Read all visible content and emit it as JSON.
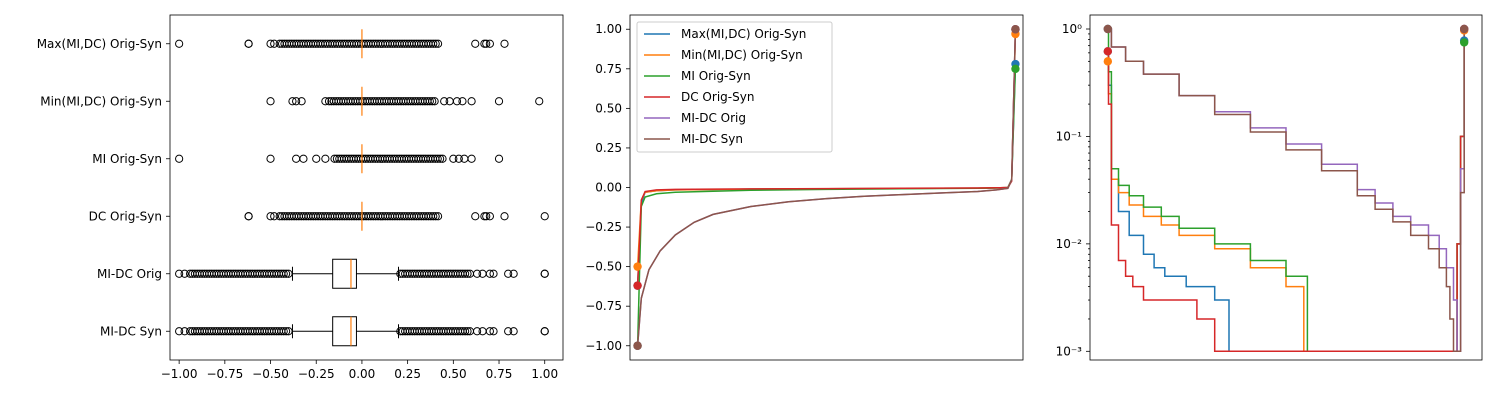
{
  "palette": [
    "#1f77b4",
    "#ff7f0e",
    "#2ca02c",
    "#d62728",
    "#9467bd",
    "#8c564b"
  ],
  "chart_data": [
    {
      "type": "box",
      "orientation": "horizontal",
      "categories": [
        "Max(MI,DC) Orig-Syn",
        "Min(MI,DC) Orig-Syn",
        "MI Orig-Syn",
        "DC Orig-Syn",
        "MI-DC Orig",
        "MI-DC Syn"
      ],
      "xlim": [
        -1.05,
        1.1
      ],
      "xticks": [
        -1.0,
        -0.75,
        -0.5,
        -0.25,
        0.0,
        0.25,
        0.5,
        0.75,
        1.0
      ],
      "xtick_labels": [
        "−1.00",
        "−0.75",
        "−0.50",
        "−0.25",
        "0.00",
        "0.25",
        "0.50",
        "0.75",
        "1.00"
      ],
      "boxes": [
        {
          "label": "Max(MI,DC) Orig-Syn",
          "q1": 0.0,
          "median": 0.0,
          "q3": 0.0,
          "whisker_low": 0.0,
          "whisker_high": 0.0,
          "outliers_dense": [
            -0.45,
            0.42
          ],
          "outliers_sparse": [
            -1.0,
            -0.62,
            -0.62,
            -0.5,
            -0.48,
            0.62,
            0.67,
            0.68,
            0.7,
            0.78
          ]
        },
        {
          "label": "Min(MI,DC) Orig-Syn",
          "q1": 0.0,
          "median": 0.0,
          "q3": 0.0,
          "whisker_low": 0.0,
          "whisker_high": 0.0,
          "outliers_dense": [
            -0.18,
            0.4
          ],
          "outliers_sparse": [
            -0.5,
            -0.38,
            -0.36,
            -0.33,
            -0.2,
            0.45,
            0.48,
            0.52,
            0.55,
            0.6,
            0.75,
            0.97
          ]
        },
        {
          "label": "MI Orig-Syn",
          "q1": 0.0,
          "median": 0.0,
          "q3": 0.0,
          "whisker_low": 0.0,
          "whisker_high": 0.0,
          "outliers_dense": [
            -0.15,
            0.45
          ],
          "outliers_sparse": [
            -1.0,
            -0.5,
            -0.36,
            -0.32,
            -0.25,
            -0.2,
            0.5,
            0.53,
            0.56,
            0.6,
            0.75
          ]
        },
        {
          "label": "DC Orig-Syn",
          "q1": 0.0,
          "median": 0.0,
          "q3": 0.0,
          "whisker_low": 0.0,
          "whisker_high": 0.0,
          "outliers_dense": [
            -0.45,
            0.42
          ],
          "outliers_sparse": [
            -0.62,
            -0.62,
            -0.5,
            -0.48,
            0.62,
            0.67,
            0.68,
            0.7,
            0.78,
            1.0
          ]
        },
        {
          "label": "MI-DC Orig",
          "q1": -0.16,
          "median": -0.06,
          "q3": -0.03,
          "whisker_low": -0.38,
          "whisker_high": 0.2,
          "outliers_dense_low": [
            -0.94,
            -0.39
          ],
          "outliers_dense_high": [
            0.21,
            0.6
          ],
          "outliers_sparse": [
            -1.0,
            -0.97,
            0.63,
            0.66,
            0.7,
            0.72,
            0.8,
            0.83,
            1.0,
            1.0
          ]
        },
        {
          "label": "MI-DC Syn",
          "q1": -0.16,
          "median": -0.06,
          "q3": -0.03,
          "whisker_low": -0.38,
          "whisker_high": 0.2,
          "outliers_dense_low": [
            -0.94,
            -0.39
          ],
          "outliers_dense_high": [
            0.21,
            0.6
          ],
          "outliers_sparse": [
            -1.0,
            -0.97,
            0.63,
            0.66,
            0.7,
            0.72,
            0.8,
            0.83,
            1.0,
            1.0
          ]
        }
      ]
    },
    {
      "type": "line",
      "ylim": [
        -1.09,
        1.09
      ],
      "yticks": [
        -1.0,
        -0.75,
        -0.5,
        -0.25,
        0.0,
        0.25,
        0.5,
        0.75,
        1.0
      ],
      "ytick_labels": [
        "−1.00",
        "−0.75",
        "−0.50",
        "−0.25",
        "0.00",
        "0.25",
        "0.50",
        "0.75",
        "1.00"
      ],
      "xticks": [],
      "legend_position": "upper-left",
      "series": [
        {
          "name": "Max(MI,DC) Orig-Syn",
          "x": [
            0,
            0.01,
            0.02,
            0.05,
            0.1,
            0.3,
            0.5,
            0.7,
            0.9,
            0.96,
            0.98,
            0.99,
            1.0
          ],
          "y": [
            -0.62,
            -0.1,
            -0.03,
            -0.02,
            -0.015,
            -0.01,
            -0.008,
            -0.006,
            -0.004,
            -0.002,
            0.0,
            0.05,
            0.78
          ],
          "end_points": [
            [
              0,
              -0.62
            ],
            [
              1,
              0.78
            ]
          ]
        },
        {
          "name": "Min(MI,DC) Orig-Syn",
          "x": [
            0,
            0.01,
            0.02,
            0.05,
            0.1,
            0.3,
            0.5,
            0.7,
            0.9,
            0.96,
            0.98,
            0.99,
            1.0
          ],
          "y": [
            -0.5,
            -0.08,
            -0.03,
            -0.02,
            -0.015,
            -0.01,
            -0.008,
            -0.006,
            -0.004,
            -0.002,
            0.0,
            0.05,
            0.97
          ],
          "end_points": [
            [
              0,
              -0.5
            ],
            [
              1,
              0.97
            ]
          ]
        },
        {
          "name": "MI Orig-Syn",
          "x": [
            0,
            0.01,
            0.02,
            0.05,
            0.1,
            0.3,
            0.5,
            0.7,
            0.9,
            0.96,
            0.98,
            0.99,
            1.0
          ],
          "y": [
            -1.0,
            -0.12,
            -0.06,
            -0.04,
            -0.03,
            -0.018,
            -0.012,
            -0.008,
            -0.005,
            -0.003,
            0.0,
            0.05,
            0.75
          ],
          "end_points": [
            [
              0,
              -1.0
            ],
            [
              1,
              0.75
            ]
          ]
        },
        {
          "name": "DC Orig-Syn",
          "x": [
            0,
            0.01,
            0.02,
            0.05,
            0.1,
            0.3,
            0.5,
            0.7,
            0.9,
            0.96,
            0.98,
            0.99,
            1.0
          ],
          "y": [
            -0.62,
            -0.08,
            -0.025,
            -0.015,
            -0.012,
            -0.009,
            -0.007,
            -0.005,
            -0.003,
            -0.001,
            0.0,
            0.04,
            1.0
          ],
          "end_points": [
            [
              0,
              -0.62
            ],
            [
              1,
              1.0
            ]
          ]
        },
        {
          "name": "MI-DC Orig",
          "x": [
            0,
            0.01,
            0.03,
            0.06,
            0.1,
            0.15,
            0.2,
            0.3,
            0.4,
            0.5,
            0.6,
            0.7,
            0.8,
            0.9,
            0.95,
            0.98,
            0.99,
            1.0
          ],
          "y": [
            -1.0,
            -0.7,
            -0.52,
            -0.4,
            -0.3,
            -0.22,
            -0.17,
            -0.12,
            -0.09,
            -0.07,
            -0.055,
            -0.045,
            -0.035,
            -0.025,
            -0.015,
            -0.005,
            0.05,
            1.0
          ],
          "end_points": [
            [
              0,
              -1.0
            ],
            [
              1,
              1.0
            ]
          ]
        },
        {
          "name": "MI-DC Syn",
          "x": [
            0,
            0.01,
            0.03,
            0.06,
            0.1,
            0.15,
            0.2,
            0.3,
            0.4,
            0.5,
            0.6,
            0.7,
            0.8,
            0.9,
            0.95,
            0.98,
            0.99,
            1.0
          ],
          "y": [
            -1.0,
            -0.7,
            -0.52,
            -0.4,
            -0.3,
            -0.22,
            -0.17,
            -0.12,
            -0.09,
            -0.07,
            -0.055,
            -0.045,
            -0.035,
            -0.025,
            -0.015,
            -0.005,
            0.05,
            1.0
          ],
          "end_points": [
            [
              0,
              -1.0
            ],
            [
              1,
              1.0
            ]
          ]
        }
      ]
    },
    {
      "type": "line",
      "yscale": "log",
      "ylim": [
        0.00083,
        1.35
      ],
      "yticks": [
        0.001,
        0.01,
        0.1,
        1
      ],
      "ytick_labels": [
        "10⁻³",
        "10⁻²",
        "10⁻¹",
        "10⁰"
      ],
      "xticks": [],
      "series": [
        {
          "name": "Max(MI,DC) Orig-Syn",
          "x": [
            0,
            0.002,
            0.01,
            0.03,
            0.06,
            0.1,
            0.13,
            0.16,
            0.22,
            0.3,
            0.34,
            0.9,
            0.96,
            0.98,
            0.99,
            1.0
          ],
          "y": [
            0.62,
            0.3,
            0.04,
            0.02,
            0.012,
            0.008,
            0.006,
            0.005,
            0.004,
            0.003,
            0.001,
            0.001,
            0.001,
            0.01,
            0.1,
            0.78
          ],
          "end_points": [
            [
              0,
              0.62
            ],
            [
              1,
              0.78
            ]
          ]
        },
        {
          "name": "Min(MI,DC) Orig-Syn",
          "x": [
            0,
            0.002,
            0.01,
            0.03,
            0.06,
            0.1,
            0.15,
            0.2,
            0.3,
            0.4,
            0.5,
            0.55,
            0.9,
            0.96,
            0.98,
            0.99,
            1.0
          ],
          "y": [
            0.5,
            0.25,
            0.04,
            0.03,
            0.023,
            0.018,
            0.015,
            0.012,
            0.009,
            0.006,
            0.004,
            0.001,
            0.001,
            0.001,
            0.01,
            0.1,
            0.97
          ],
          "end_points": [
            [
              0,
              0.5
            ],
            [
              1,
              0.97
            ]
          ]
        },
        {
          "name": "MI Orig-Syn",
          "x": [
            0,
            0.002,
            0.01,
            0.03,
            0.06,
            0.1,
            0.15,
            0.2,
            0.3,
            0.4,
            0.5,
            0.56,
            0.9,
            0.97,
            0.98,
            0.99,
            1.0
          ],
          "y": [
            1.0,
            0.4,
            0.05,
            0.035,
            0.028,
            0.022,
            0.018,
            0.014,
            0.01,
            0.007,
            0.005,
            0.001,
            0.001,
            0.001,
            0.01,
            0.1,
            0.75
          ],
          "end_points": [
            [
              0,
              1.0
            ],
            [
              1,
              0.75
            ]
          ]
        },
        {
          "name": "DC Orig-Syn",
          "x": [
            0,
            0.002,
            0.01,
            0.03,
            0.05,
            0.07,
            0.1,
            0.15,
            0.25,
            0.3,
            0.9,
            0.96,
            0.98,
            0.99,
            1.0
          ],
          "y": [
            0.62,
            0.2,
            0.015,
            0.007,
            0.005,
            0.004,
            0.003,
            0.003,
            0.002,
            0.001,
            0.001,
            0.001,
            0.01,
            0.1,
            1.0
          ],
          "end_points": [
            [
              0,
              0.62
            ],
            [
              1,
              1.0
            ]
          ]
        },
        {
          "name": "MI-DC Orig",
          "x": [
            0,
            0.01,
            0.05,
            0.1,
            0.2,
            0.3,
            0.4,
            0.5,
            0.6,
            0.7,
            0.75,
            0.8,
            0.85,
            0.9,
            0.93,
            0.95,
            0.97,
            0.98,
            0.99,
            1.0
          ],
          "y": [
            1.0,
            0.68,
            0.5,
            0.38,
            0.24,
            0.17,
            0.12,
            0.085,
            0.055,
            0.032,
            0.024,
            0.018,
            0.015,
            0.012,
            0.009,
            0.006,
            0.003,
            0.001,
            0.05,
            1.0
          ],
          "end_points": [
            [
              0,
              1.0
            ],
            [
              1,
              1.0
            ]
          ]
        },
        {
          "name": "MI-DC Syn",
          "x": [
            0,
            0.01,
            0.05,
            0.1,
            0.2,
            0.3,
            0.4,
            0.5,
            0.6,
            0.7,
            0.75,
            0.8,
            0.85,
            0.9,
            0.93,
            0.95,
            0.96,
            0.97,
            0.99,
            1.0
          ],
          "y": [
            1.0,
            0.68,
            0.5,
            0.38,
            0.24,
            0.16,
            0.11,
            0.075,
            0.048,
            0.028,
            0.021,
            0.016,
            0.012,
            0.009,
            0.006,
            0.004,
            0.002,
            0.001,
            0.03,
            1.0
          ],
          "end_points": [
            [
              0,
              1.0
            ],
            [
              1,
              1.0
            ]
          ]
        }
      ]
    }
  ]
}
